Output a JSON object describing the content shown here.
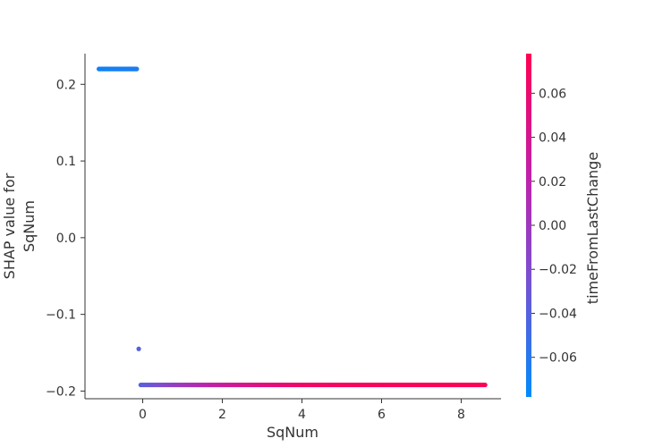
{
  "chart_data": {
    "type": "scatter",
    "title": "",
    "xlabel": "SqNum",
    "ylabel_lines": [
      "SHAP value for",
      "SqNum"
    ],
    "xlim": [
      -1.45,
      9.0
    ],
    "ylim": [
      -0.21,
      0.24
    ],
    "xticks": [
      0,
      2,
      4,
      6,
      8
    ],
    "xtick_labels": [
      "0",
      "2",
      "4",
      "6",
      "8"
    ],
    "yticks": [
      -0.2,
      -0.1,
      0.0,
      0.1,
      0.2
    ],
    "ytick_labels": [
      "−0.2",
      "−0.1",
      "0.0",
      "0.1",
      "0.2"
    ],
    "grid": false,
    "color_feature": {
      "label": "timeFromLastChange",
      "range": [
        -0.078,
        0.078
      ],
      "ticks": [
        -0.06,
        -0.04,
        -0.02,
        0.0,
        0.02,
        0.04,
        0.06
      ],
      "tick_labels": [
        "−0.06",
        "−0.04",
        "−0.02",
        "0.00",
        "0.02",
        "0.04",
        "0.06"
      ],
      "colors": [
        "#008bfb",
        "#7a4fd0",
        "#c120a8",
        "#ff0052"
      ]
    },
    "series": [
      {
        "points": [
          {
            "x": -1.1,
            "y": 0.22,
            "c": -0.07
          },
          {
            "x": -0.9,
            "y": 0.22,
            "c": -0.07
          },
          {
            "x": -0.7,
            "y": 0.22,
            "c": -0.068
          },
          {
            "x": -0.5,
            "y": 0.22,
            "c": -0.068
          },
          {
            "x": -0.3,
            "y": 0.22,
            "c": -0.066
          },
          {
            "x": -0.15,
            "y": 0.22,
            "c": -0.065
          },
          {
            "x": -0.1,
            "y": -0.145,
            "c": -0.04
          },
          {
            "x": -0.05,
            "y": -0.192,
            "c": -0.04
          },
          {
            "x": 0.5,
            "y": -0.192,
            "c": -0.02
          },
          {
            "x": 1.0,
            "y": -0.192,
            "c": 0.0
          },
          {
            "x": 1.5,
            "y": -0.192,
            "c": 0.015
          },
          {
            "x": 2.0,
            "y": -0.192,
            "c": 0.03
          },
          {
            "x": 3.0,
            "y": -0.192,
            "c": 0.05
          },
          {
            "x": 4.0,
            "y": -0.192,
            "c": 0.065
          },
          {
            "x": 5.0,
            "y": -0.192,
            "c": 0.07
          },
          {
            "x": 6.0,
            "y": -0.192,
            "c": 0.072
          },
          {
            "x": 7.0,
            "y": -0.192,
            "c": 0.074
          },
          {
            "x": 8.0,
            "y": -0.192,
            "c": 0.075
          },
          {
            "x": 8.6,
            "y": -0.192,
            "c": 0.075
          }
        ]
      }
    ]
  }
}
